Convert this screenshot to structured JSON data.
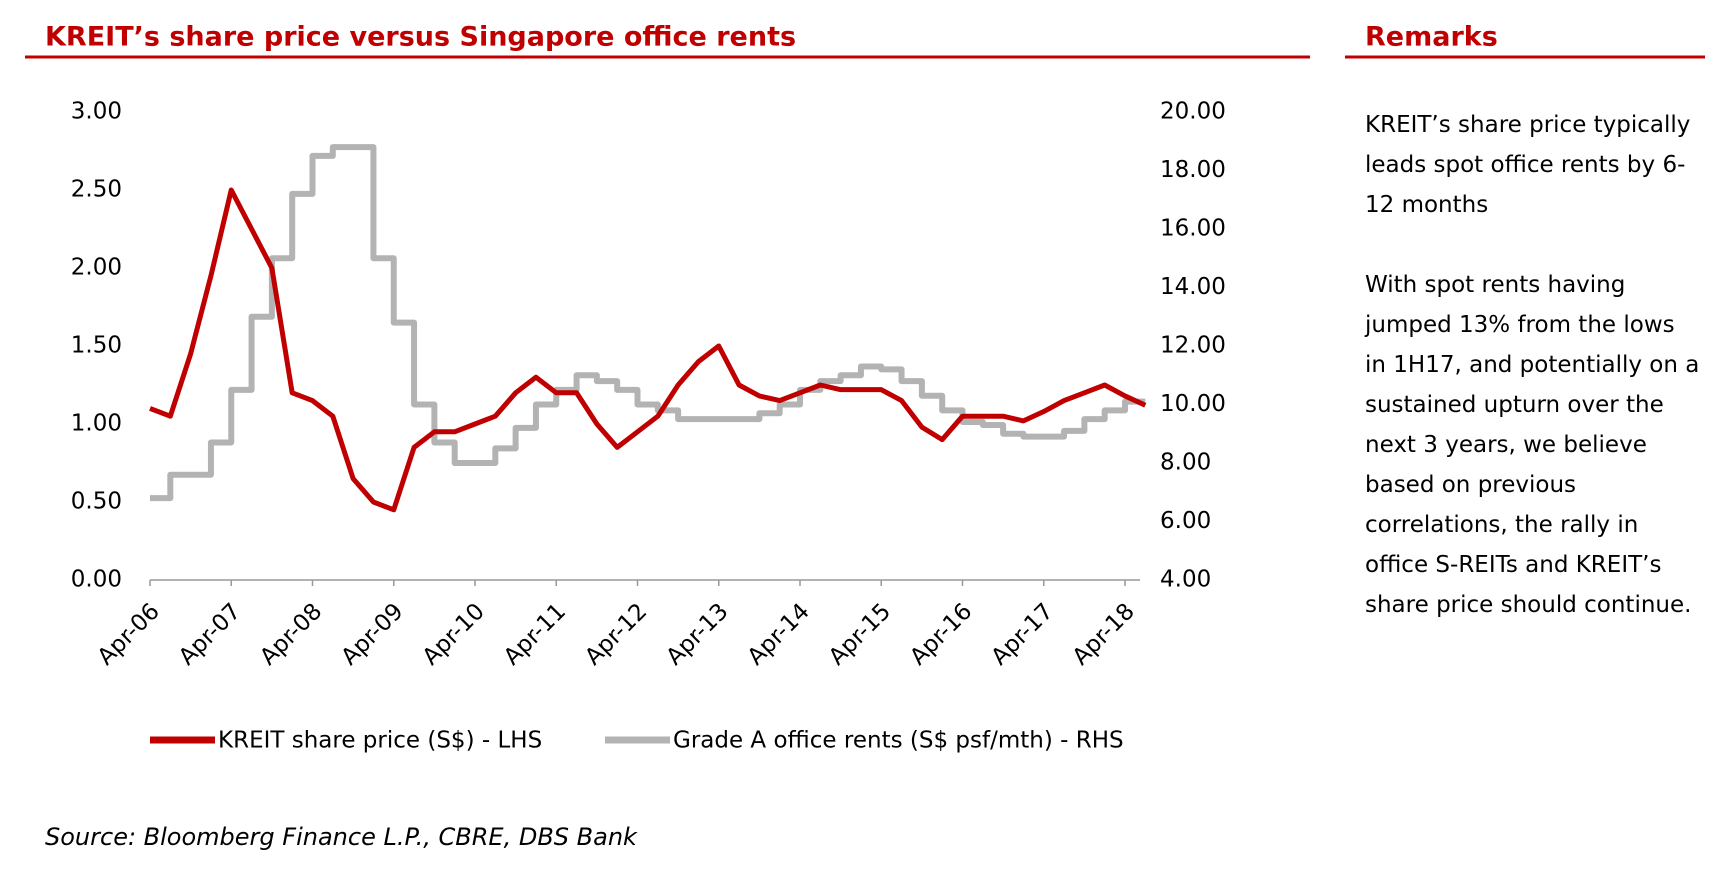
{
  "chart_data": {
    "type": "line",
    "title": "KREIT’s share price versus Singapore office rents",
    "remarks_title": "Remarks",
    "remarks": [
      "KREIT’s share price typically leads spot office rents by 6-12 months",
      "With spot rents having jumped 13% from the lows in 1H17, and potentially on a sustained upturn over the next 3 years, we believe based on previous correlations, the rally in office S-REITs and KREIT’s share price should continue."
    ],
    "source": "Source: Bloomberg Finance L.P., CBRE, DBS Bank",
    "categories": [
      "Apr-06",
      null,
      null,
      null,
      "Apr-07",
      null,
      null,
      null,
      "Apr-08",
      null,
      null,
      null,
      "Apr-09",
      null,
      null,
      null,
      "Apr-10",
      null,
      null,
      null,
      "Apr-11",
      null,
      null,
      null,
      "Apr-12",
      null,
      null,
      null,
      "Apr-13",
      null,
      null,
      null,
      "Apr-14",
      null,
      null,
      null,
      "Apr-15",
      null,
      null,
      null,
      "Apr-16",
      null,
      null,
      null,
      "Apr-17",
      null,
      null,
      null,
      "Apr-18",
      null
    ],
    "series": [
      {
        "name": "KREIT share price (S$) - LHS",
        "color": "#c00000",
        "axis": "y",
        "values": [
          1.1,
          1.05,
          1.45,
          1.95,
          2.5,
          2.25,
          2.0,
          1.2,
          1.15,
          1.05,
          0.65,
          0.5,
          0.45,
          0.85,
          0.95,
          0.95,
          1.0,
          1.05,
          1.2,
          1.3,
          1.2,
          1.2,
          1.0,
          0.85,
          0.95,
          1.05,
          1.25,
          1.4,
          1.5,
          1.25,
          1.18,
          1.15,
          1.2,
          1.25,
          1.22,
          1.22,
          1.22,
          1.15,
          0.98,
          0.9,
          1.05,
          1.05,
          1.05,
          1.02,
          1.08,
          1.15,
          1.2,
          1.25,
          1.18,
          1.12
        ]
      },
      {
        "name": "Grade A office rents (S$ psf/mth) - RHS",
        "color": "#b3b3b3",
        "axis": "y2",
        "values": [
          6.8,
          7.6,
          7.6,
          8.7,
          10.5,
          13.0,
          15.0,
          17.2,
          18.5,
          18.8,
          18.8,
          15.0,
          12.8,
          10.0,
          8.7,
          8.0,
          8.0,
          8.5,
          9.2,
          10.0,
          10.5,
          11.0,
          10.8,
          10.5,
          10.0,
          9.8,
          9.5,
          9.5,
          9.5,
          9.5,
          9.7,
          10.0,
          10.5,
          10.8,
          11.0,
          11.3,
          11.2,
          10.8,
          10.3,
          9.8,
          9.4,
          9.3,
          9.0,
          8.9,
          8.9,
          9.1,
          9.5,
          9.8,
          10.1,
          10.1
        ]
      }
    ],
    "ylim": [
      0,
      3
    ],
    "yticks": [
      {
        "value": 0,
        "label": "0.00"
      },
      {
        "value": 0.5,
        "label": "0.50"
      },
      {
        "value": 1,
        "label": "1.00"
      },
      {
        "value": 1.5,
        "label": "1.50"
      },
      {
        "value": 2,
        "label": "2.00"
      },
      {
        "value": 2.5,
        "label": "2.50"
      },
      {
        "value": 3,
        "label": "3.00"
      }
    ],
    "y2lim": [
      4,
      20
    ],
    "y2ticks": [
      {
        "value": 4,
        "label": "4.00"
      },
      {
        "value": 6,
        "label": "6.00"
      },
      {
        "value": 8,
        "label": "8.00"
      },
      {
        "value": 10,
        "label": "10.00"
      },
      {
        "value": 12,
        "label": "12.00"
      },
      {
        "value": 14,
        "label": "14.00"
      },
      {
        "value": 16,
        "label": "16.00"
      },
      {
        "value": 18,
        "label": "18.00"
      },
      {
        "value": 20,
        "label": "20.00"
      }
    ],
    "step_series": [
      1
    ],
    "grid": false,
    "legend": "bottom"
  }
}
